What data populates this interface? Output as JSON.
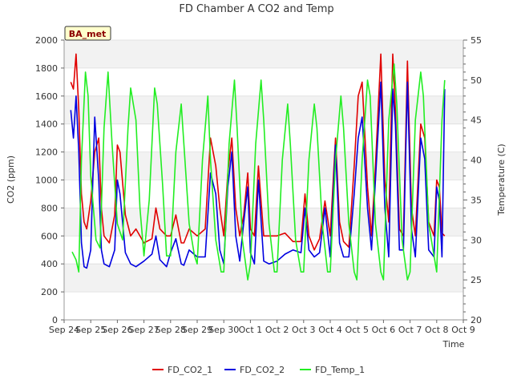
{
  "chart_data": {
    "type": "line",
    "title": "FD Chamber A CO2 and Temp",
    "xlabel": "Time",
    "ylabel": "CO2 (ppm)",
    "y2label": "Temperature (C)",
    "badge": "BA_met",
    "x_ticks": [
      "Sep 24",
      "Sep 25",
      "Sep 26",
      "Sep 27",
      "Sep 28",
      "Sep 29",
      "Sep 30",
      "Oct 1",
      "Oct 2",
      "Oct 3",
      "Oct 4",
      "Oct 5",
      "Oct 6",
      "Oct 7",
      "Oct 8",
      "Oct 9"
    ],
    "x_range_days": [
      0,
      15
    ],
    "ylim": [
      0,
      2000
    ],
    "y_ticks": [
      0,
      200,
      400,
      600,
      800,
      1000,
      1200,
      1400,
      1600,
      1800,
      2000
    ],
    "y2lim": [
      20,
      55
    ],
    "y2_ticks": [
      20,
      25,
      30,
      35,
      40,
      45,
      50,
      55
    ],
    "grid": true,
    "legend_position": "bottom-center",
    "series": [
      {
        "name": "FD_CO2_1",
        "color": "#e00000",
        "axis": "left",
        "x": [
          0.25,
          0.35,
          0.45,
          0.55,
          0.65,
          0.75,
          0.85,
          1.0,
          1.15,
          1.3,
          1.4,
          1.5,
          1.7,
          1.9,
          2.0,
          2.1,
          2.3,
          2.5,
          2.7,
          3.0,
          3.3,
          3.45,
          3.6,
          3.85,
          4.0,
          4.2,
          4.4,
          4.5,
          4.7,
          5.0,
          5.3,
          5.5,
          5.7,
          5.85,
          6.0,
          6.15,
          6.3,
          6.45,
          6.6,
          6.75,
          6.9,
          7.0,
          7.15,
          7.3,
          7.5,
          7.7,
          8.0,
          8.3,
          8.6,
          8.9,
          9.05,
          9.2,
          9.4,
          9.6,
          9.8,
          10.0,
          10.2,
          10.35,
          10.5,
          10.7,
          10.9,
          11.05,
          11.2,
          11.4,
          11.55,
          11.7,
          11.9,
          12.05,
          12.2,
          12.35,
          12.45,
          12.6,
          12.75,
          12.9,
          13.05,
          13.2,
          13.4,
          13.55,
          13.7,
          13.9,
          14.0,
          14.1,
          14.2,
          14.3
        ],
        "y": [
          1700,
          1650,
          1900,
          1500,
          900,
          700,
          650,
          850,
          1200,
          1300,
          800,
          600,
          550,
          750,
          1250,
          1200,
          750,
          600,
          650,
          550,
          580,
          800,
          650,
          600,
          600,
          750,
          550,
          550,
          650,
          600,
          650,
          1300,
          1100,
          800,
          600,
          1050,
          1300,
          800,
          600,
          750,
          1050,
          650,
          600,
          1100,
          600,
          600,
          600,
          620,
          560,
          560,
          900,
          600,
          500,
          580,
          850,
          600,
          1300,
          700,
          560,
          520,
          1100,
          1600,
          1700,
          950,
          600,
          1100,
          1900,
          1000,
          700,
          1900,
          1500,
          650,
          600,
          1850,
          800,
          600,
          1400,
          1300,
          700,
          600,
          1000,
          950,
          620,
          600
        ]
      },
      {
        "name": "FD_CO2_2",
        "color": "#0000e0",
        "axis": "left",
        "x": [
          0.25,
          0.35,
          0.45,
          0.55,
          0.65,
          0.75,
          0.85,
          1.0,
          1.15,
          1.3,
          1.4,
          1.5,
          1.7,
          1.9,
          2.0,
          2.1,
          2.3,
          2.5,
          2.7,
          3.0,
          3.3,
          3.45,
          3.6,
          3.85,
          4.0,
          4.2,
          4.4,
          4.5,
          4.7,
          5.0,
          5.3,
          5.5,
          5.7,
          5.85,
          6.0,
          6.15,
          6.3,
          6.45,
          6.6,
          6.75,
          6.9,
          7.0,
          7.15,
          7.3,
          7.5,
          7.7,
          8.0,
          8.3,
          8.6,
          8.9,
          9.05,
          9.2,
          9.4,
          9.6,
          9.8,
          10.0,
          10.2,
          10.35,
          10.5,
          10.7,
          10.9,
          11.05,
          11.2,
          11.4,
          11.55,
          11.7,
          11.9,
          12.05,
          12.2,
          12.35,
          12.45,
          12.6,
          12.75,
          12.9,
          13.05,
          13.2,
          13.4,
          13.55,
          13.7,
          13.9,
          14.0,
          14.1,
          14.2,
          14.3
        ],
        "y": [
          1500,
          1300,
          1600,
          1200,
          550,
          380,
          370,
          500,
          1450,
          1000,
          500,
          400,
          380,
          500,
          1000,
          900,
          480,
          400,
          380,
          420,
          470,
          600,
          430,
          380,
          480,
          580,
          400,
          390,
          500,
          450,
          450,
          1050,
          900,
          500,
          400,
          950,
          1200,
          600,
          420,
          700,
          950,
          480,
          400,
          1000,
          420,
          400,
          420,
          470,
          500,
          480,
          800,
          500,
          450,
          480,
          800,
          450,
          1250,
          550,
          450,
          450,
          900,
          1300,
          1450,
          800,
          500,
          1000,
          1700,
          800,
          450,
          1650,
          1400,
          500,
          500,
          1700,
          650,
          450,
          1300,
          1150,
          500,
          450,
          950,
          850,
          450,
          1650
        ]
      },
      {
        "name": "FD_Temp_1",
        "color": "#22ee22",
        "axis": "right",
        "x": [
          0.3,
          0.45,
          0.55,
          0.65,
          0.8,
          0.9,
          1.0,
          1.2,
          1.35,
          1.5,
          1.65,
          1.8,
          2.0,
          2.2,
          2.4,
          2.5,
          2.7,
          2.85,
          3.0,
          3.2,
          3.4,
          3.5,
          3.7,
          3.85,
          4.0,
          4.2,
          4.4,
          4.5,
          4.7,
          4.9,
          5.0,
          5.2,
          5.4,
          5.5,
          5.7,
          5.9,
          6.0,
          6.2,
          6.4,
          6.5,
          6.7,
          6.9,
          7.0,
          7.2,
          7.4,
          7.5,
          7.7,
          7.9,
          8.0,
          8.2,
          8.4,
          8.5,
          8.7,
          8.9,
          9.0,
          9.2,
          9.4,
          9.5,
          9.7,
          9.9,
          10.0,
          10.2,
          10.4,
          10.5,
          10.7,
          10.9,
          11.0,
          11.2,
          11.4,
          11.5,
          11.7,
          11.9,
          12.0,
          12.2,
          12.4,
          12.5,
          12.7,
          12.9,
          13.0,
          13.2,
          13.4,
          13.5,
          13.7,
          13.9,
          14.0,
          14.2,
          14.3
        ],
        "y": [
          28.5,
          27.5,
          26,
          40,
          51,
          48,
          38,
          30,
          29,
          44,
          51,
          42,
          32,
          30,
          44,
          49,
          45,
          34,
          28,
          35,
          49,
          47,
          37,
          28,
          28,
          41,
          47,
          42,
          32,
          28,
          27,
          40,
          48,
          40,
          30,
          26,
          26,
          42,
          50,
          44,
          30,
          25,
          27,
          42,
          50,
          45,
          32,
          26,
          26,
          40,
          47,
          42,
          30,
          26,
          26,
          40,
          47,
          44,
          32,
          26,
          26,
          40,
          48,
          44,
          32,
          26,
          25,
          40,
          50,
          48,
          32,
          26,
          25,
          45,
          52,
          47,
          30,
          25,
          26,
          45,
          51,
          48,
          32,
          28,
          26,
          45,
          50
        ]
      }
    ]
  }
}
